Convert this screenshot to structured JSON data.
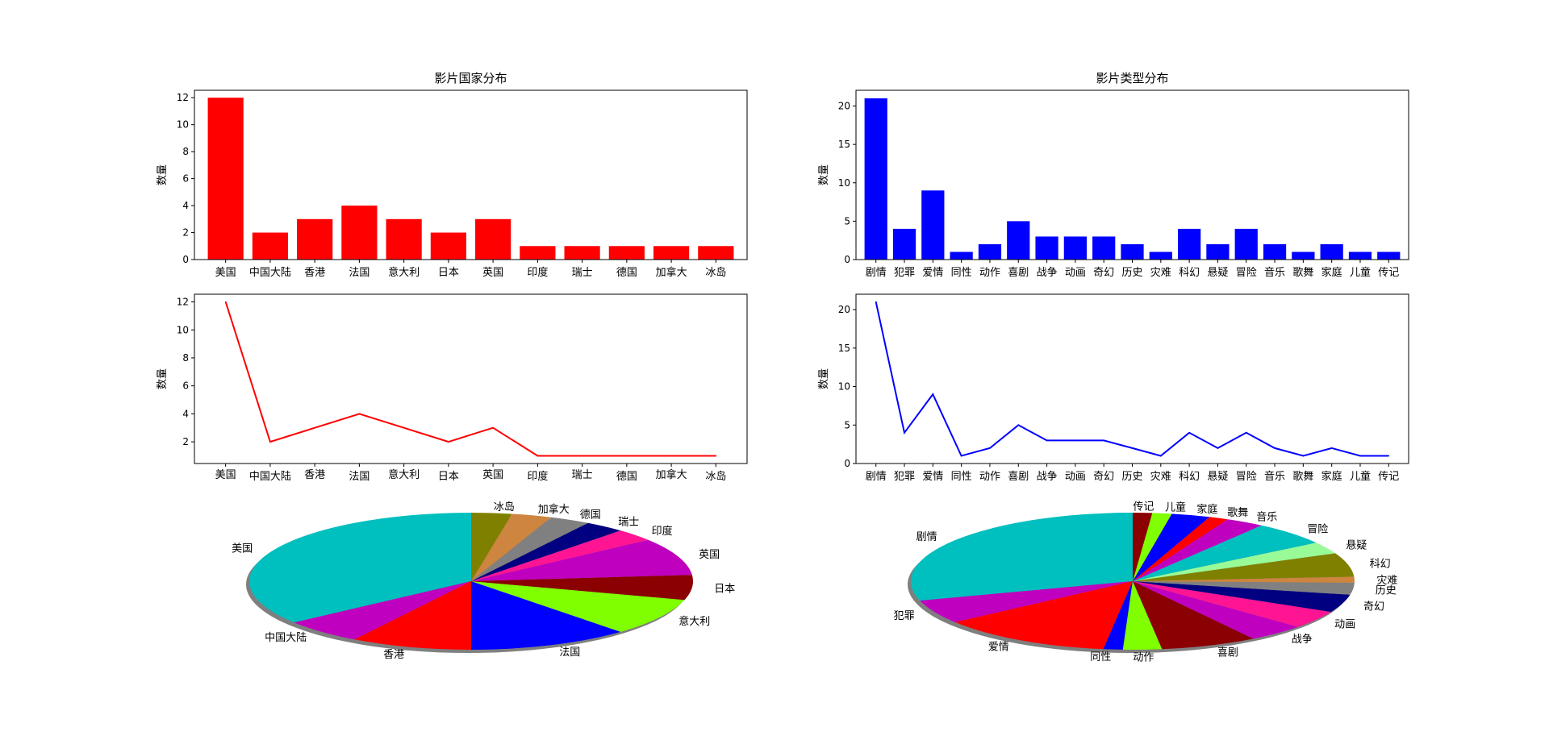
{
  "chart_data": [
    {
      "type": "bar",
      "title": "影片国家分布",
      "ylabel": "数量",
      "color": "#ff0000",
      "categories": [
        "美国",
        "中国大陆",
        "香港",
        "法国",
        "意大利",
        "日本",
        "英国",
        "印度",
        "瑞士",
        "德国",
        "加拿大",
        "冰岛"
      ],
      "values": [
        12,
        2,
        3,
        4,
        3,
        2,
        3,
        1,
        1,
        1,
        1,
        1
      ],
      "ylim": [
        0,
        12.55
      ],
      "yticks": [
        0,
        2,
        4,
        6,
        8,
        10,
        12
      ]
    },
    {
      "type": "bar",
      "title": "影片类型分布",
      "ylabel": "数量",
      "color": "#0000ff",
      "categories": [
        "剧情",
        "犯罪",
        "爱情",
        "同性",
        "动作",
        "喜剧",
        "战争",
        "动画",
        "奇幻",
        "历史",
        "灾难",
        "科幻",
        "悬疑",
        "冒险",
        "音乐",
        "歌舞",
        "家庭",
        "儿童",
        "传记"
      ],
      "values": [
        21,
        4,
        9,
        1,
        2,
        5,
        3,
        3,
        3,
        2,
        1,
        4,
        2,
        4,
        2,
        1,
        2,
        1,
        1
      ],
      "ylim": [
        0,
        22.05
      ],
      "yticks": [
        0,
        5,
        10,
        15,
        20
      ]
    },
    {
      "type": "line",
      "title": "",
      "ylabel": "数量",
      "color": "#ff0000",
      "categories": [
        "美国",
        "中国大陆",
        "香港",
        "法国",
        "意大利",
        "日本",
        "英国",
        "印度",
        "瑞士",
        "德国",
        "加拿大",
        "冰岛"
      ],
      "values": [
        12,
        2,
        3,
        4,
        3,
        2,
        3,
        1,
        1,
        1,
        1,
        1
      ],
      "ylim": [
        0.45,
        12.55
      ],
      "yticks": [
        2,
        4,
        6,
        8,
        10,
        12
      ]
    },
    {
      "type": "line",
      "title": "",
      "ylabel": "数量",
      "color": "#0000ff",
      "categories": [
        "剧情",
        "犯罪",
        "爱情",
        "同性",
        "动作",
        "喜剧",
        "战争",
        "动画",
        "奇幻",
        "历史",
        "灾难",
        "科幻",
        "悬疑",
        "冒险",
        "音乐",
        "歌舞",
        "家庭",
        "儿童",
        "传记"
      ],
      "values": [
        21,
        4,
        9,
        1,
        2,
        5,
        3,
        3,
        3,
        2,
        1,
        4,
        2,
        4,
        2,
        1,
        2,
        1,
        1
      ],
      "ylim": [
        0,
        22.0
      ],
      "yticks": [
        0,
        5,
        10,
        15,
        20
      ]
    },
    {
      "type": "pie",
      "title": "",
      "shadow": true,
      "labels": [
        "美国",
        "中国大陆",
        "香港",
        "法国",
        "意大利",
        "日本",
        "英国",
        "印度",
        "瑞士",
        "德国",
        "加拿大",
        "冰岛"
      ],
      "values": [
        12,
        2,
        3,
        4,
        3,
        2,
        3,
        1,
        1,
        1,
        1,
        1
      ],
      "colors": [
        "#00bfbf",
        "#bf00bf",
        "#ff0000",
        "#0000ff",
        "#7fff00",
        "#8b0000",
        "#bf00bf",
        "#ff1493",
        "#000080",
        "#808080",
        "#cd853f",
        "#808000"
      ]
    },
    {
      "type": "pie",
      "title": "",
      "shadow": true,
      "labels": [
        "剧情",
        "犯罪",
        "爱情",
        "同性",
        "动作",
        "喜剧",
        "战争",
        "动画",
        "奇幻",
        "历史",
        "灾难",
        "科幻",
        "悬疑",
        "冒险",
        "音乐",
        "歌舞",
        "家庭",
        "儿童",
        "传记"
      ],
      "values": [
        21,
        4,
        9,
        1,
        2,
        5,
        3,
        3,
        3,
        2,
        1,
        4,
        2,
        4,
        2,
        1,
        2,
        1,
        1
      ],
      "colors": [
        "#00bfbf",
        "#bf00bf",
        "#ff0000",
        "#0000ff",
        "#7fff00",
        "#8b0000",
        "#bf00bf",
        "#ff1493",
        "#000080",
        "#808080",
        "#cd853f",
        "#808000",
        "#98fb98",
        "#00bfbf",
        "#bf00bf",
        "#ff0000",
        "#0000ff",
        "#7fff00",
        "#8b0000"
      ]
    }
  ]
}
